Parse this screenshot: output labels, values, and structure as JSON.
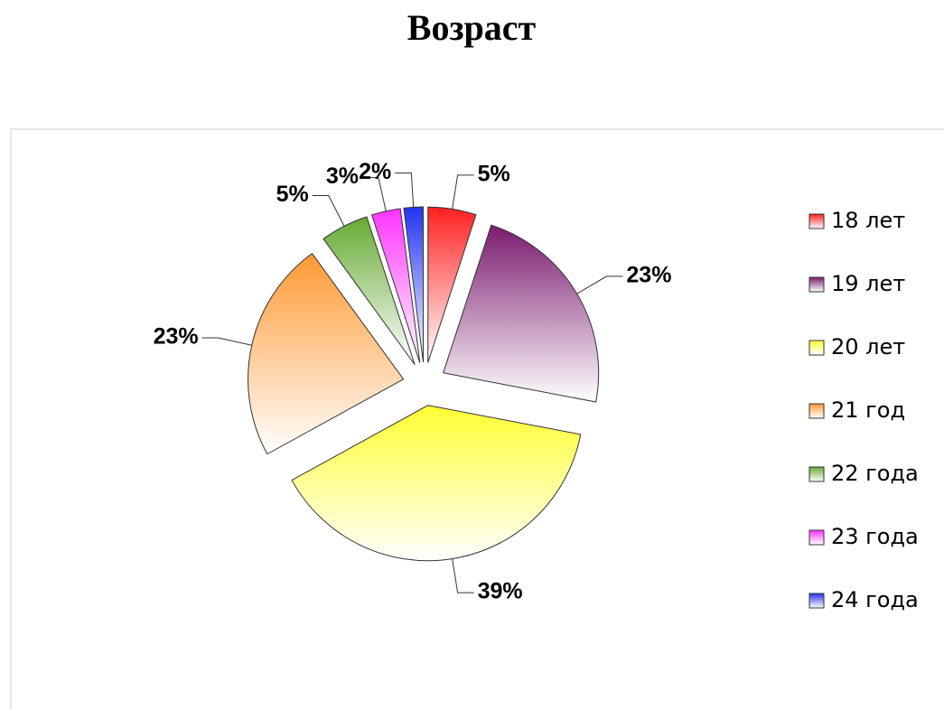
{
  "chart_data": {
    "type": "pie",
    "title": "Возраст",
    "categories": [
      "18 лет",
      "19 лет",
      "20 лет",
      "21 год",
      "22 года",
      "23 года",
      "24 года"
    ],
    "values": [
      5,
      23,
      39,
      23,
      5,
      3,
      2
    ],
    "value_labels": [
      "5%",
      "23%",
      "39%",
      "23%",
      "5%",
      "3%",
      "2%"
    ],
    "colors": [
      "#ff2020",
      "#7a1a6e",
      "#ffff30",
      "#ff9933",
      "#66aa33",
      "#ff33ff",
      "#2233ee"
    ],
    "legend": "right"
  }
}
